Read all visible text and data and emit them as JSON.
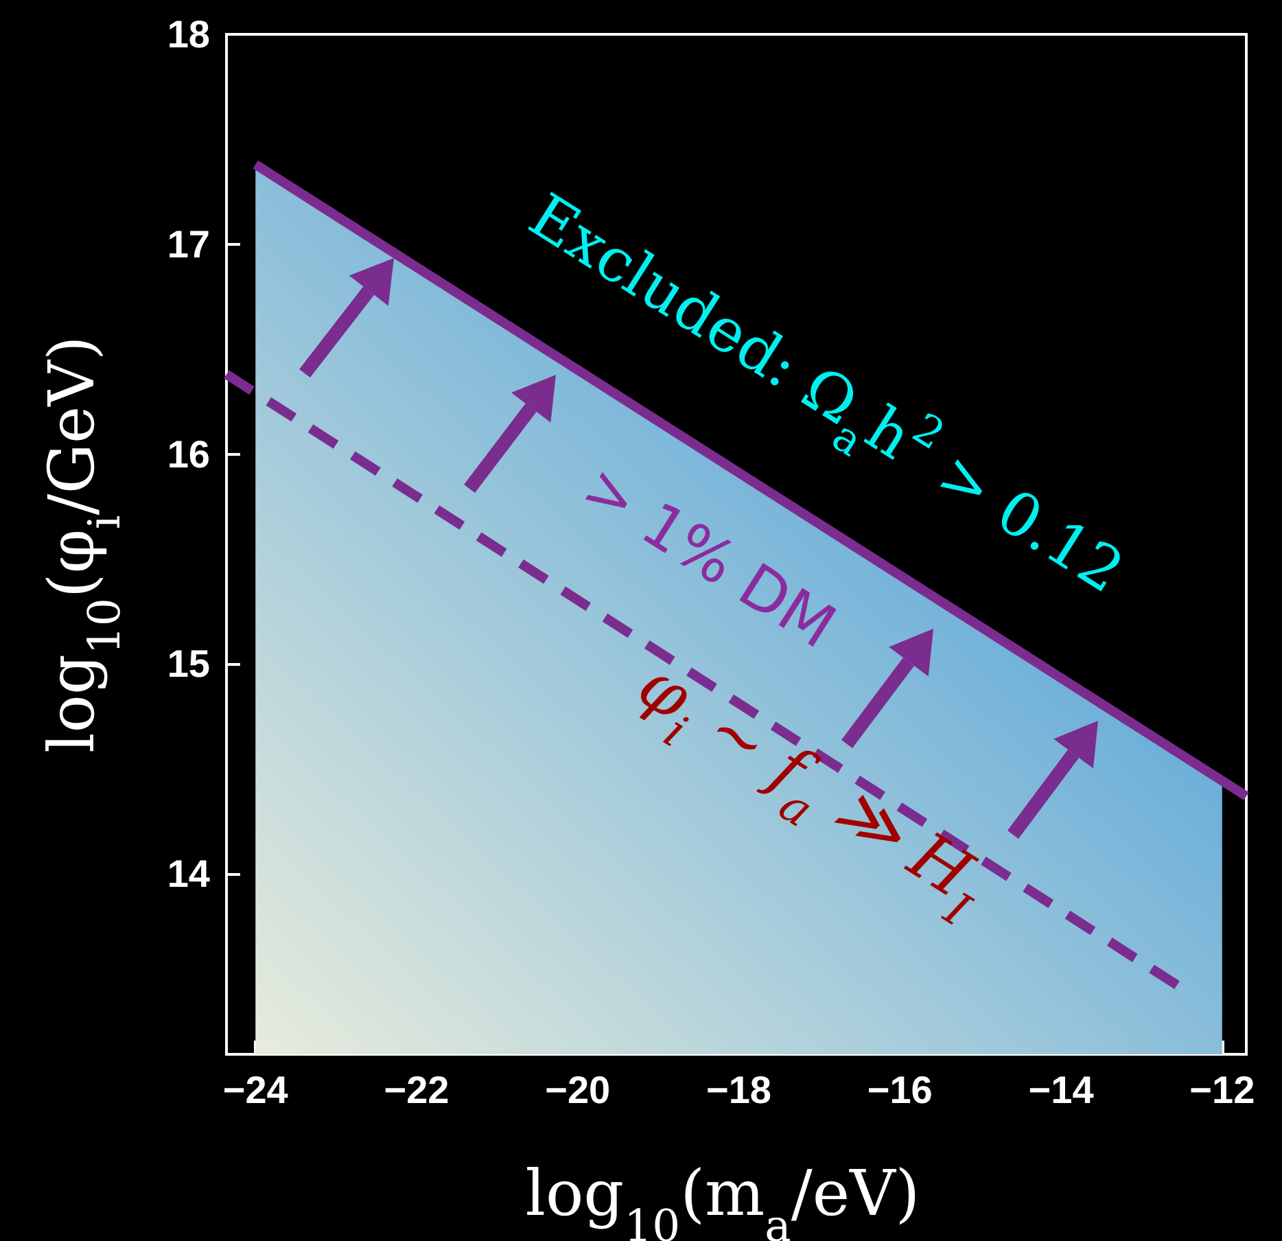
{
  "chart_data": {
    "type": "line",
    "xlabel": "log$_{10}$(m$_{a}$/eV)",
    "ylabel": "log$_{10}$(φ$_{i}$/GeV)",
    "xlim": [
      -24.36,
      -11.7
    ],
    "xticks": [
      -24,
      -22,
      -20,
      -18,
      -16,
      -14,
      -12
    ],
    "ylim": [
      13.14,
      18
    ],
    "yticks": [
      14,
      15,
      16,
      17,
      18
    ],
    "grid": false,
    "marker": "none",
    "series": [
      {
        "type": "area",
        "color": "#2b8fd8",
        "x": [
          -24,
          -12
        ],
        "values": [
          17.38,
          14.44
        ]
      },
      {
        "color": "#7b2c8f",
        "line_style": "solid",
        "x": [
          -24,
          -11.7
        ],
        "values": [
          17.38,
          14.37
        ]
      },
      {
        "color": "#7b2c8f",
        "line_style": "dashed",
        "x": [
          -24.36,
          -12.56
        ],
        "values": [
          16.38,
          13.47
        ]
      }
    ],
    "annotations": [
      "Excluded: Ω$_{a}$h$^{2}$ > 0.12",
      "> 1% DM",
      "φ$_{i}$ ~ f$_{a}$ ≫ H$_{I}$"
    ]
  }
}
